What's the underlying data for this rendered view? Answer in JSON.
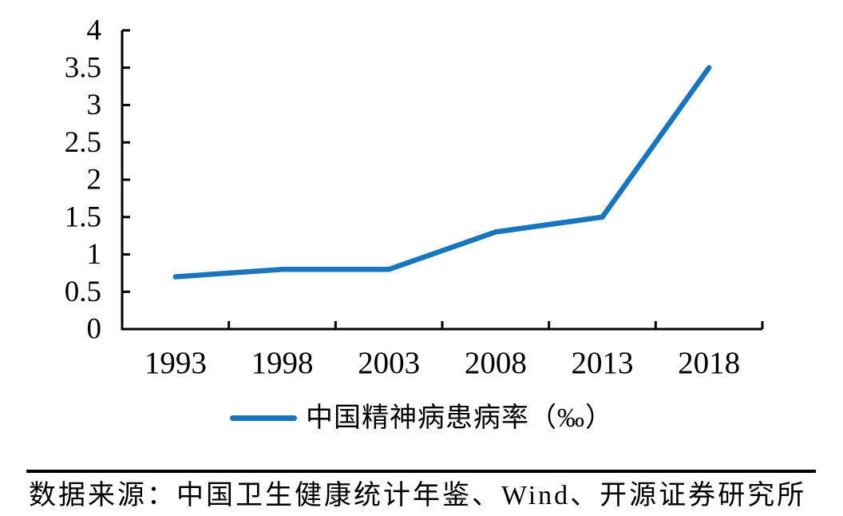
{
  "chart_data": {
    "type": "line",
    "title": "",
    "xlabel": "",
    "ylabel": "",
    "categories": [
      "1993",
      "1998",
      "2003",
      "2008",
      "2013",
      "2018"
    ],
    "series": [
      {
        "name": "中国精神病患病率（‰）",
        "values": [
          0.7,
          0.8,
          0.8,
          1.3,
          1.5,
          3.5
        ],
        "color": "#1B75BC"
      }
    ],
    "ylim": [
      0,
      4
    ],
    "ytick_labels": [
      "0",
      "0.5",
      "1",
      "1.5",
      "2",
      "2.5",
      "3",
      "3.5",
      "4"
    ],
    "grid": false,
    "legend_position": "bottom-center",
    "axis_color": "#000000",
    "tick_style": "inward"
  },
  "legend": {
    "label": "中国精神病患病率（‰）",
    "swatch_color": "#1B75BC"
  },
  "source": {
    "text": "数据来源：中国卫生健康统计年鉴、Wind、开源证券研究所"
  }
}
